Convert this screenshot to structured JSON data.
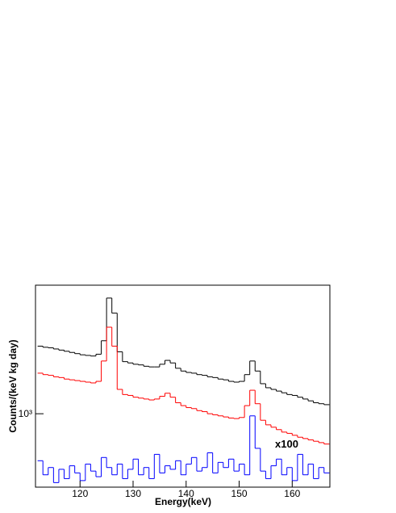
{
  "chart_data": {
    "type": "histogram",
    "x_label": "Energy(keV)",
    "y_label": "Counts/(keV kg day)",
    "annotation": "x100",
    "annotation_color": "#0000cc",
    "ylog": true,
    "xlim": [
      111.6,
      167.1
    ],
    "ylim": [
      498,
      3390
    ],
    "xticks": [
      120,
      130,
      140,
      150,
      160
    ],
    "yticks": [
      {
        "value": 1000,
        "label": "10³"
      }
    ],
    "bins": [
      112,
      113,
      114,
      115,
      116,
      117,
      118,
      119,
      120,
      121,
      122,
      123,
      124,
      125,
      126,
      127,
      128,
      129,
      130,
      131,
      132,
      133,
      134,
      135,
      136,
      137,
      138,
      139,
      140,
      141,
      142,
      143,
      144,
      145,
      146,
      147,
      148,
      149,
      150,
      151,
      152,
      153,
      154,
      155,
      156,
      157,
      158,
      159,
      160,
      161,
      162,
      163,
      164,
      165,
      166,
      167
    ],
    "series": [
      {
        "color": "#000000",
        "values": [
          1900,
          1880,
          1870,
          1850,
          1830,
          1810,
          1790,
          1770,
          1750,
          1740,
          1730,
          1760,
          2000,
          3000,
          2600,
          1800,
          1640,
          1620,
          1600,
          1590,
          1570,
          1560,
          1560,
          1600,
          1660,
          1620,
          1540,
          1500,
          1480,
          1470,
          1450,
          1440,
          1420,
          1410,
          1390,
          1380,
          1360,
          1350,
          1360,
          1450,
          1650,
          1500,
          1330,
          1280,
          1260,
          1240,
          1220,
          1200,
          1190,
          1170,
          1150,
          1130,
          1110,
          1100,
          1090
        ]
      },
      {
        "color": "#ff0000",
        "values": [
          1470,
          1450,
          1440,
          1420,
          1410,
          1390,
          1380,
          1370,
          1360,
          1350,
          1340,
          1360,
          1650,
          2275,
          1900,
          1260,
          1200,
          1190,
          1170,
          1160,
          1150,
          1140,
          1150,
          1180,
          1215,
          1170,
          1110,
          1080,
          1060,
          1050,
          1030,
          1020,
          1000,
          990,
          980,
          970,
          960,
          955,
          965,
          1080,
          1250,
          1100,
          940,
          900,
          880,
          860,
          840,
          830,
          815,
          800,
          790,
          780,
          770,
          760,
          750
        ]
      },
      {
        "color": "#0000ff",
        "values": [
          640,
          560,
          600,
          520,
          590,
          540,
          610,
          570,
          530,
          620,
          580,
          550,
          660,
          600,
          560,
          620,
          540,
          590,
          650,
          560,
          600,
          540,
          680,
          570,
          610,
          590,
          640,
          560,
          620,
          660,
          580,
          600,
          690,
          570,
          630,
          600,
          650,
          580,
          620,
          560,
          980,
          720,
          580,
          540,
          610,
          650,
          560,
          600,
          530,
          680,
          560,
          620,
          540,
          600,
          570
        ]
      }
    ]
  }
}
